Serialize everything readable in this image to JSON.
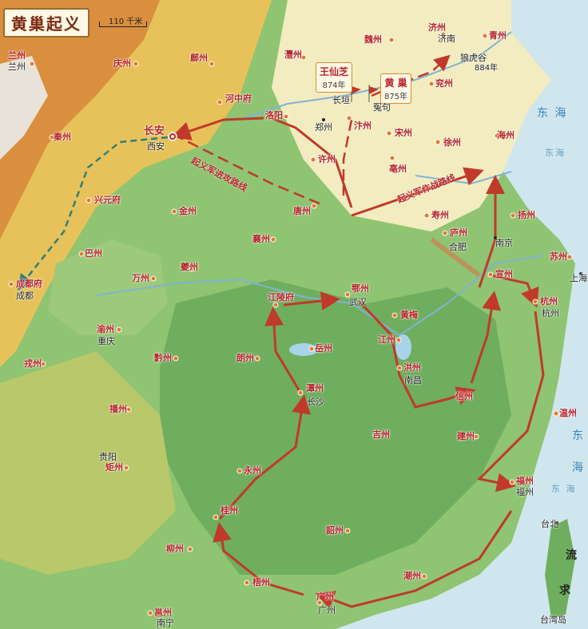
{
  "title": "黄巢起义",
  "scale": "110 千米",
  "leaders": [
    {
      "name": "王仙芝",
      "year": "874年"
    },
    {
      "name": "黄 巢",
      "year": "875年"
    }
  ],
  "route_labels": {
    "northwest": "起义军进攻路线",
    "main": "起义军作战路线"
  },
  "seas": {
    "east_sea": "东 海",
    "east_sea_small": "东海",
    "dongyu": "东 海",
    "fujian_sea": "东",
    "fujian_sea2": "海",
    "strait": "流",
    "strait2": "求"
  },
  "places_ancient": {
    "lanzhou": "兰州",
    "qingzhou": "庆州",
    "fuzhou_n": "鄜州",
    "shuozhou": "灃州",
    "weizhou": "魏州",
    "jizhou": "济州",
    "qingzhou2": "青州",
    "yanzhou": "兖州",
    "hezhongfu": "河中府",
    "luoyang": "洛阳",
    "bianzhou": "汴州",
    "songzhou": "宋州",
    "xuzhou": "徐州",
    "haizhou": "海州",
    "qinzhou": "秦州",
    "changan": "长安",
    "xuzhou2": "许州",
    "bozhou": "亳州",
    "xingyuanfu": "兴元府",
    "jinzhou": "金州",
    "tangzhou": "唐州",
    "shouzhou": "寿州",
    "yangzhou": "扬州",
    "bazhou": "巴州",
    "xiangzhou": "襄州",
    "luzhou": "庐州",
    "suzhou": "苏州",
    "wanzhou": "万州",
    "kuizhou": "夔州",
    "xuanzhou": "宣州",
    "chengdufu": "成都府",
    "jianglingfu": "江陵府",
    "ezhou": "鄂州",
    "hangzhou": "杭州",
    "huangmei": "黄梅",
    "yuzhou": "渝州",
    "jiangzhou": "江州",
    "yuezhou": "岳州",
    "qianzhou": "黔州",
    "langzhou": "朗州",
    "hongzhou": "洪州",
    "rongzhou": "戎州",
    "tanzhou": "潭州",
    "xinzhou": "信州",
    "wenzhou": "温州",
    "bozhou2": "播州",
    "jizhou2": "吉州",
    "jianzhou": "建州",
    "juzhou": "矩州",
    "yongzhou": "永州",
    "fuzhou": "福州",
    "guizhou": "桂州",
    "shaozhou": "韶州",
    "liuzhou": "柳州",
    "chaozhou": "潮州",
    "wuzhou": "梧州",
    "guangzhou": "广州",
    "yongzhou2": "邕州"
  },
  "places_modern": {
    "lanzhou": "兰州",
    "jinan": "济南",
    "langhugu": "狼虎谷",
    "langhugu_year": "884年",
    "changyuan": "长垣",
    "yuanju": "冤句",
    "zhengzhou": "郑州",
    "xian": "西安",
    "nanjing": "南京",
    "hefei": "合肥",
    "shanghai": "上海",
    "wuhan": "武汉",
    "hangzhou": "杭州",
    "chengdu": "成都",
    "chongqing": "重庆",
    "nanchang": "南昌",
    "changsha": "长沙",
    "guiyang": "贵阳",
    "fuzhou": "福州",
    "taibei": "台北",
    "guangzhou": "广州",
    "nanning": "南宁",
    "taiwan": "台湾岛"
  }
}
